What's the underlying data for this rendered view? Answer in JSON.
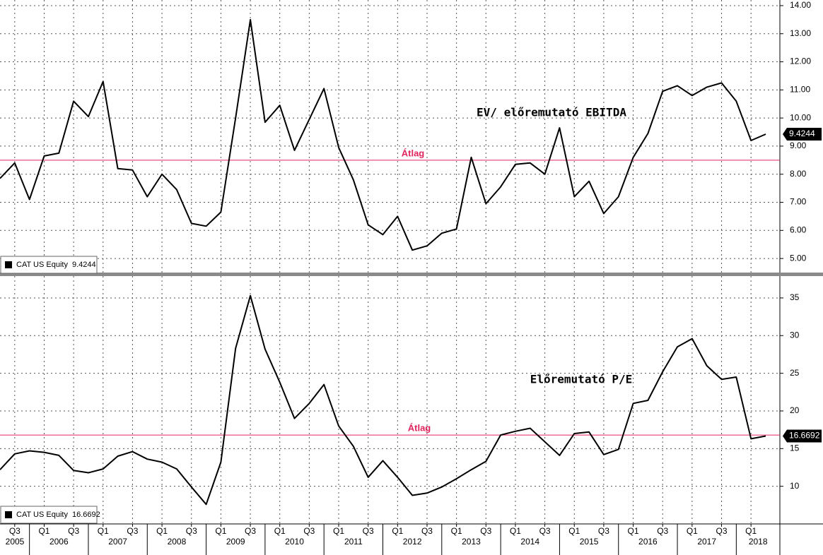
{
  "chart_data": [
    {
      "type": "line",
      "annotation": "EV/ előremutató EBITDA",
      "series": [
        {
          "name": "CAT US Equity",
          "color": "#000000",
          "values": [
            7.85,
            8.4,
            7.1,
            8.65,
            8.75,
            10.6,
            10.05,
            11.3,
            8.2,
            8.15,
            7.2,
            8.0,
            7.45,
            6.25,
            6.15,
            6.65,
            10.0,
            13.5,
            9.85,
            10.45,
            8.85,
            9.95,
            11.05,
            8.95,
            7.8,
            6.2,
            5.85,
            6.5,
            5.3,
            5.45,
            5.9,
            6.05,
            8.6,
            6.95,
            7.55,
            8.35,
            8.4,
            8.0,
            9.65,
            7.2,
            7.75,
            6.6,
            7.2,
            8.6,
            9.45,
            10.95,
            11.15,
            10.8,
            11.1,
            11.25,
            10.6,
            9.2,
            9.4244
          ]
        }
      ],
      "reference_line": {
        "label": "Átlag",
        "value": 8.5,
        "color": "#e0245e"
      },
      "ylim": [
        4.5,
        14.2
      ],
      "yticks": [
        {
          "value": 5,
          "label": "5.00"
        },
        {
          "value": 6,
          "label": "6.00"
        },
        {
          "value": 7,
          "label": "7.00"
        },
        {
          "value": 8,
          "label": "8.00"
        },
        {
          "value": 9,
          "label": "9.00"
        },
        {
          "value": 10,
          "label": "10.00"
        },
        {
          "value": 11,
          "label": "11.00"
        },
        {
          "value": 12,
          "label": "12.00"
        },
        {
          "value": 13,
          "label": "13.00"
        },
        {
          "value": 14,
          "label": "14.00"
        }
      ],
      "grid": true
    },
    {
      "type": "line",
      "annotation": "Előremutató P/E",
      "categories": [
        null,
        "Q3",
        null,
        "Q1",
        null,
        "Q3",
        null,
        "Q1",
        null,
        "Q3",
        null,
        "Q1",
        null,
        "Q3",
        null,
        "Q1",
        null,
        "Q3",
        null,
        "Q1",
        null,
        "Q3",
        null,
        "Q1",
        null,
        "Q3",
        null,
        "Q1",
        null,
        "Q3",
        null,
        "Q1",
        null,
        "Q3",
        null,
        "Q1",
        null,
        "Q3",
        null,
        "Q1",
        null,
        "Q3",
        null,
        "Q1",
        null,
        "Q3",
        null,
        "Q1",
        null,
        "Q3",
        null,
        "Q1",
        null
      ],
      "x_groups": [
        "2005",
        "2006",
        "2007",
        "2008",
        "2009",
        "2010",
        "2011",
        "2012",
        "2013",
        "2014",
        "2015",
        "2016",
        "2017",
        "2018"
      ],
      "series": [
        {
          "name": "CAT US Equity",
          "color": "#000000",
          "values": [
            12.2,
            14.3,
            14.7,
            14.5,
            14.1,
            12.1,
            11.8,
            12.3,
            14.0,
            14.6,
            13.6,
            13.2,
            12.3,
            9.9,
            7.6,
            13.2,
            28.3,
            35.3,
            28.2,
            23.8,
            19.0,
            21.0,
            23.5,
            18.0,
            15.3,
            11.2,
            13.4,
            11.2,
            8.8,
            9.1,
            9.9,
            11.0,
            12.2,
            13.3,
            16.8,
            17.3,
            17.7,
            15.9,
            14.1,
            17.0,
            17.2,
            14.2,
            14.9,
            21.0,
            21.4,
            25.2,
            28.5,
            29.6,
            26.0,
            24.2,
            24.5,
            16.3,
            16.6692
          ]
        }
      ],
      "reference_line": {
        "label": "Átlag",
        "value": 16.8,
        "color": "#e0245e"
      },
      "ylim": [
        5,
        37.9
      ],
      "yticks": [
        10,
        15,
        20,
        25,
        30,
        35
      ],
      "grid": true
    }
  ]
}
